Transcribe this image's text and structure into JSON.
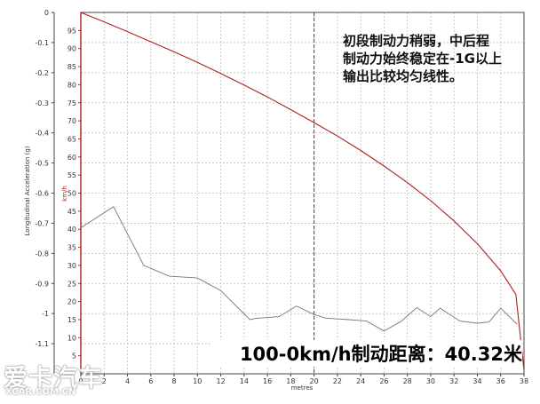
{
  "chart_data": {
    "type": "line",
    "xlabel": "metres",
    "ylabel_left": "Longitudinal Acceleration (g)",
    "ylabel_right": "km/h",
    "x_ticks": [
      0,
      2,
      4,
      6,
      8,
      10,
      12,
      14,
      16,
      18,
      20,
      22,
      24,
      26,
      28,
      30,
      32,
      34,
      36,
      38
    ],
    "y_left_ticks": [
      "0",
      "-0.1",
      "-0.2",
      "-0.3",
      "-0.4",
      "-0.5",
      "-0.6",
      "-0.7",
      "-0.8",
      "-0.9",
      "-1",
      "-1.1"
    ],
    "y_right_ticks": [
      "95",
      "90",
      "85",
      "80",
      "75",
      "70",
      "65",
      "60",
      "55",
      "50",
      "45",
      "40",
      "35",
      "30",
      "25",
      "20",
      "15",
      "10",
      "5"
    ],
    "xlim": [
      0,
      38
    ],
    "ylim_left": [
      0,
      -1.2
    ],
    "ylim_right": [
      0,
      100
    ],
    "grid": true,
    "marker_x": 20,
    "series": [
      {
        "axis": "left",
        "color": "#777777",
        "x": [
          0,
          2.8,
          5.4,
          7.6,
          10,
          12,
          14.5,
          15,
          17,
          18.5,
          20,
          21,
          23,
          24.5,
          26,
          27.5,
          28.8,
          30,
          30.8,
          32.5,
          34,
          35,
          36,
          37.4
        ],
        "y": [
          -0.715,
          -0.645,
          -0.84,
          -0.876,
          -0.882,
          -0.924,
          -1.02,
          -1.016,
          -1.01,
          -0.975,
          -1.003,
          -1.015,
          -1.02,
          -1.025,
          -1.058,
          -1.025,
          -0.98,
          -1.01,
          -0.982,
          -1.025,
          -1.032,
          -1.028,
          -0.982,
          -1.035
        ]
      },
      {
        "axis": "right",
        "color": "#b02020",
        "x": [
          0,
          2,
          4,
          6,
          8,
          10,
          12,
          14,
          16,
          18,
          20,
          22,
          24,
          26,
          28,
          30,
          32,
          34,
          36,
          37.3,
          38.2
        ],
        "y": [
          100,
          97.4,
          94.7,
          91.9,
          89.1,
          86.2,
          83.1,
          79.9,
          76.6,
          73.1,
          69.5,
          65.8,
          61.8,
          57.5,
          52.9,
          47.9,
          42.3,
          36.0,
          28.5,
          22.0,
          1
        ]
      }
    ]
  },
  "annotation": {
    "lines": [
      "初段制动力稍弱，中后程",
      "制动力始终稳定在-1G以上",
      "输出比较均匀线性。"
    ]
  },
  "headline": "100-0km/h制动距离：40.32米",
  "watermark": {
    "main": "爱卡汽车",
    "sub": "XCAR.COM.CN"
  }
}
